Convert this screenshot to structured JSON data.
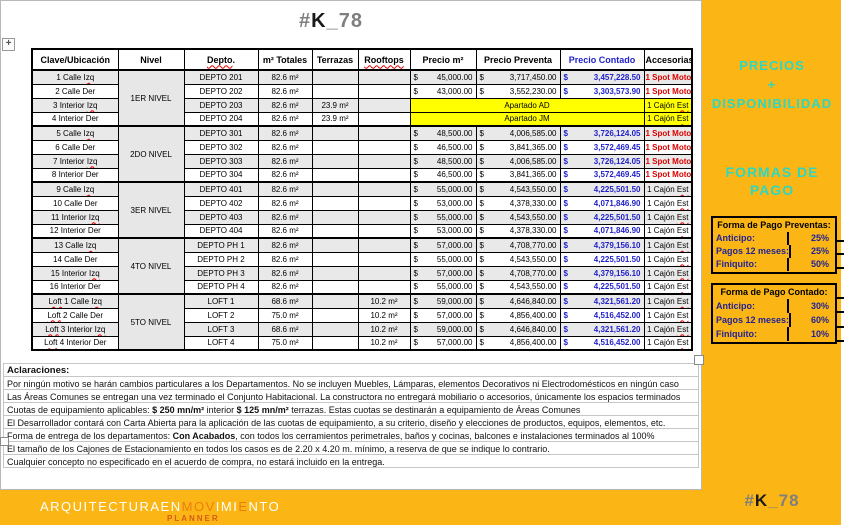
{
  "title": {
    "hash": "#",
    "k": "K",
    "suffix": "_78"
  },
  "spellcheck_words": [
    "Izq",
    "Loft",
    "Depto",
    "Rooftops",
    "Est",
    "mn"
  ],
  "table": {
    "headers": [
      "Clave/Ubicación",
      "Nivel",
      "Depto.",
      "m² Totales",
      "Terrazas",
      "Rooftops",
      "Precio m²",
      "Precio Preventa",
      "Precio Contado",
      "Accesorias"
    ],
    "groups": [
      {
        "nivel": "1ER NIVEL",
        "rows": [
          {
            "clave": "1 Calle Izq",
            "depto": "DEPTO 201",
            "m2": "82.6 m²",
            "terrazas": "",
            "rooftops": "",
            "precio_m2": "45,000.00",
            "preventa": "3,717,450.00",
            "contado": "3,457,228.50",
            "accesorias": "1 Spot Moto",
            "accesorias_red": true
          },
          {
            "clave": "2 Calle Der",
            "depto": "DEPTO 202",
            "m2": "82.6 m²",
            "terrazas": "",
            "rooftops": "",
            "precio_m2": "43,000.00",
            "preventa": "3,552,230.00",
            "contado": "3,303,573.90",
            "accesorias": "1 Spot Moto",
            "accesorias_red": true
          },
          {
            "clave": "3 Interior Izq",
            "depto": "DEPTO 203",
            "m2": "82.6 m²",
            "terrazas": "23.9 m²",
            "rooftops": "",
            "apartado": "Apartado AD",
            "accesorias": "1 Cajón Est",
            "accesorias_red": false
          },
          {
            "clave": "4 Interior Der",
            "depto": "DEPTO 204",
            "m2": "82.6 m²",
            "terrazas": "23.9 m²",
            "rooftops": "",
            "apartado": "Apartado JM",
            "accesorias": "1 Cajón Est",
            "accesorias_red": false
          }
        ]
      },
      {
        "nivel": "2DO NIVEL",
        "rows": [
          {
            "clave": "5 Calle Izq",
            "depto": "DEPTO 301",
            "m2": "82.6 m²",
            "terrazas": "",
            "rooftops": "",
            "precio_m2": "48,500.00",
            "preventa": "4,006,585.00",
            "contado": "3,726,124.05",
            "accesorias": "1 Spot Moto",
            "accesorias_red": true
          },
          {
            "clave": "6 Calle Der",
            "depto": "DEPTO 302",
            "m2": "82.6 m²",
            "terrazas": "",
            "rooftops": "",
            "precio_m2": "46,500.00",
            "preventa": "3,841,365.00",
            "contado": "3,572,469.45",
            "accesorias": "1 Spot Moto",
            "accesorias_red": true
          },
          {
            "clave": "7 Interior Izq",
            "depto": "DEPTO 303",
            "m2": "82.6 m²",
            "terrazas": "",
            "rooftops": "",
            "precio_m2": "48,500.00",
            "preventa": "4,006,585.00",
            "contado": "3,726,124.05",
            "accesorias": "1 Spot Moto",
            "accesorias_red": true
          },
          {
            "clave": "8 Interior Der",
            "depto": "DEPTO 304",
            "m2": "82.6 m²",
            "terrazas": "",
            "rooftops": "",
            "precio_m2": "46,500.00",
            "preventa": "3,841,365.00",
            "contado": "3,572,469.45",
            "accesorias": "1 Spot Moto",
            "accesorias_red": true
          }
        ]
      },
      {
        "nivel": "3ER NIVEL",
        "rows": [
          {
            "clave": "9 Calle Izq",
            "depto": "DEPTO 401",
            "m2": "82.6 m²",
            "terrazas": "",
            "rooftops": "",
            "precio_m2": "55,000.00",
            "preventa": "4,543,550.00",
            "contado": "4,225,501.50",
            "accesorias": "1 Cajón Est",
            "accesorias_red": false
          },
          {
            "clave": "10 Calle Der",
            "depto": "DEPTO 402",
            "m2": "82.6 m²",
            "terrazas": "",
            "rooftops": "",
            "precio_m2": "53,000.00",
            "preventa": "4,378,330.00",
            "contado": "4,071,846.90",
            "accesorias": "1 Cajón Est",
            "accesorias_red": false
          },
          {
            "clave": "11 Interior Izq",
            "depto": "DEPTO 403",
            "m2": "82.6 m²",
            "terrazas": "",
            "rooftops": "",
            "precio_m2": "55,000.00",
            "preventa": "4,543,550.00",
            "contado": "4,225,501.50",
            "accesorias": "1 Cajón Est",
            "accesorias_red": false
          },
          {
            "clave": "12 Interior Der",
            "depto": "DEPTO 404",
            "m2": "82.6 m²",
            "terrazas": "",
            "rooftops": "",
            "precio_m2": "53,000.00",
            "preventa": "4,378,330.00",
            "contado": "4,071,846.90",
            "accesorias": "1 Cajón Est",
            "accesorias_red": false
          }
        ]
      },
      {
        "nivel": "4TO NIVEL",
        "rows": [
          {
            "clave": "13 Calle Izq",
            "depto": "DEPTO PH 1",
            "m2": "82.6 m²",
            "terrazas": "",
            "rooftops": "",
            "precio_m2": "57,000.00",
            "preventa": "4,708,770.00",
            "contado": "4,379,156.10",
            "accesorias": "1 Cajón Est",
            "accesorias_red": false
          },
          {
            "clave": "14 Calle Der",
            "depto": "DEPTO PH 2",
            "m2": "82.6 m²",
            "terrazas": "",
            "rooftops": "",
            "precio_m2": "55,000.00",
            "preventa": "4,543,550.00",
            "contado": "4,225,501.50",
            "accesorias": "1 Cajón Est",
            "accesorias_red": false
          },
          {
            "clave": "15 Interior Izq",
            "depto": "DEPTO PH 3",
            "m2": "82.6 m²",
            "terrazas": "",
            "rooftops": "",
            "precio_m2": "57,000.00",
            "preventa": "4,708,770.00",
            "contado": "4,379,156.10",
            "accesorias": "1 Cajón Est",
            "accesorias_red": false
          },
          {
            "clave": "16 Interior Der",
            "depto": "DEPTO PH 4",
            "m2": "82.6 m²",
            "terrazas": "",
            "rooftops": "",
            "precio_m2": "55,000.00",
            "preventa": "4,543,550.00",
            "contado": "4,225,501.50",
            "accesorias": "1 Cajón Est",
            "accesorias_red": false
          }
        ]
      },
      {
        "nivel": "5TO NIVEL",
        "rows": [
          {
            "clave": "Loft 1 Calle Izq",
            "depto": "LOFT 1",
            "m2": "68.6 m²",
            "terrazas": "",
            "rooftops": "10.2 m²",
            "precio_m2": "59,000.00",
            "preventa": "4,646,840.00",
            "contado": "4,321,561.20",
            "accesorias": "1 Cajón Est",
            "accesorias_red": false
          },
          {
            "clave": "Loft 2 Calle Der",
            "depto": "LOFT 2",
            "m2": "75.0 m²",
            "terrazas": "",
            "rooftops": "10.2 m²",
            "precio_m2": "57,000.00",
            "preventa": "4,856,400.00",
            "contado": "4,516,452.00",
            "accesorias": "1 Cajón Est",
            "accesorias_red": false
          },
          {
            "clave": "Loft 3 Interior Izq",
            "depto": "LOFT 3",
            "m2": "68.6 m²",
            "terrazas": "",
            "rooftops": "10.2 m²",
            "precio_m2": "59,000.00",
            "preventa": "4,646,840.00",
            "contado": "4,321,561.20",
            "accesorias": "1 Cajón Est",
            "accesorias_red": false
          },
          {
            "clave": "Loft 4 Interior Der",
            "depto": "LOFT 4",
            "m2": "75.0 m²",
            "terrazas": "",
            "rooftops": "10.2 m²",
            "precio_m2": "57,000.00",
            "preventa": "4,856,400.00",
            "contado": "4,516,452.00",
            "accesorias": "1 Cajón Est",
            "accesorias_red": false
          }
        ]
      }
    ]
  },
  "notes": {
    "heading": "Aclaraciones:",
    "lines": [
      {
        "segments": [
          {
            "t": "Por ningún motivo se harán cambios particulares a los Departamentos.  No se incluyen Muebles, Lámparas, elementos Decorativos ni Electrodomésticos en ningún caso"
          }
        ]
      },
      {
        "segments": [
          {
            "t": "Las Áreas Comunes se entregan una vez terminado el Conjunto Habitacional.  La constructora no entregará mobiliario o accesorios, únicamente los espacios terminados"
          }
        ]
      },
      {
        "segments": [
          {
            "t": "Cuotas de equipamiento aplicables: "
          },
          {
            "t": "$ 250 mn/m²",
            "b": true
          },
          {
            "t": " interior "
          },
          {
            "t": "$ 125 mn/m²",
            "b": true
          },
          {
            "t": " terrazas. Estas cuotas se destinarán a equipamiento de Áreas Comunes"
          }
        ]
      },
      {
        "segments": [
          {
            "t": "El Desarrollador contará con Carta Abierta para la aplicación de las cuotas de equipamiento, a su criterio, diseño y elecciones de productos, equipos, elementos, etc."
          }
        ]
      },
      {
        "segments": [
          {
            "t": "Forma de entrega de los departamentos:  "
          },
          {
            "t": "Con Acabados",
            "b": true
          },
          {
            "t": ", con todos los cerramientos perimetrales, baños y cocinas, balcones e instalaciones terminados al 100%"
          }
        ]
      },
      {
        "segments": [
          {
            "t": "El tamaño de los Cajones de Estacionamiento en todos los casos es de 2.20 x 4.20 m. mínimo, a reserva de que se indique lo contrario."
          }
        ]
      },
      {
        "segments": [
          {
            "t": "Cualquier concepto no especificado en el acuerdo de compra, no estará incluido en la entrega."
          }
        ]
      }
    ]
  },
  "sidebar": {
    "heading1": [
      "PRECIOS",
      "+",
      "DISPONIBILIDAD"
    ],
    "heading2": [
      "FORMAS DE",
      "PAGO"
    ],
    "boxes": [
      {
        "title": "Forma de Pago Preventas:",
        "rows": [
          [
            "Anticipo:",
            "25%"
          ],
          [
            "Pagos 12 meses:",
            "25%"
          ],
          [
            "Finiquito:",
            "50%"
          ]
        ]
      },
      {
        "title": "Forma de Pago Contado:",
        "rows": [
          [
            "Anticipo:",
            "30%"
          ],
          [
            "Pagos 12 meses:",
            "60%"
          ],
          [
            "Finiquito:",
            "10%"
          ]
        ]
      }
    ]
  },
  "logo": {
    "segments": [
      {
        "t": "ARQUITECTURAEN",
        "accent": false
      },
      {
        "t": "MOV",
        "accent": true
      },
      {
        "t": "IMI",
        "accent": false
      },
      {
        "t": "E",
        "accent": true
      },
      {
        "t": "NTO",
        "accent": false
      }
    ],
    "sub": "PLANNER"
  },
  "colors": {
    "orange": "#FBB615",
    "cyan": "#2BD8C2",
    "yellow": "#FFFF00",
    "contado_blue": "#1F1FCC",
    "alert_red": "#DD0000",
    "navy": "#222297",
    "stripe_gray": "#E9E9E9",
    "title_gray": "#7f7f7f",
    "logo_accent": "#ED7E0C"
  }
}
